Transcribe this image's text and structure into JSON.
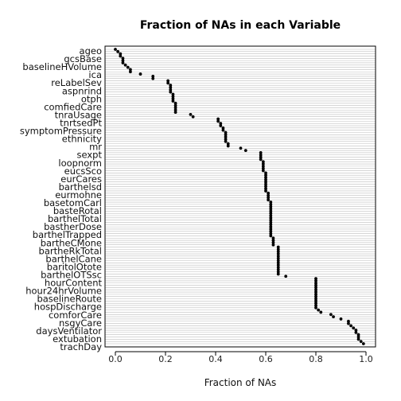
{
  "chart_data": {
    "type": "scatter",
    "title": "Fraction of NAs in each Variable",
    "xlabel": "Fraction of NAs",
    "ylabel": "",
    "xlim": [
      0,
      1
    ],
    "x_ticks": [
      "0.0",
      "0.2",
      "0.4",
      "0.6",
      "0.8",
      "1.0"
    ],
    "x_tick_values": [
      0,
      0.2,
      0.4,
      0.6,
      0.8,
      1.0
    ],
    "grid": "horizontal",
    "y_labels_legible": [
      "ageo",
      "gcsBase",
      "baselineHVolume",
      "ica",
      "reLabelSev",
      "aspnrind",
      "otph",
      "comfiedCare",
      "tnraUsage",
      "tnrtsedPt",
      "symptomPressure",
      "ethnicity",
      "mr",
      "sexpt",
      "loopnorm",
      "eucsSco",
      "eurCares",
      "barthelsd",
      "eurmohne",
      "basetomCarl",
      "basteRotal",
      "barthelTotal",
      "bastherDose",
      "barthelTrapped",
      "bartheCMone",
      "bartheRkTotal",
      "barthelCane",
      "baritolOtote",
      "barthelOTSsc",
      "hourContent",
      "hour24hrVolume",
      "baselineRoute",
      "hospDischarge",
      "comforCare",
      "nsgyCare",
      "daysVentilator",
      "extubation",
      "trachDay"
    ],
    "values": [
      0.0,
      0.01,
      0.02,
      0.02,
      0.03,
      0.03,
      0.03,
      0.04,
      0.05,
      0.06,
      0.06,
      0.1,
      0.15,
      0.15,
      0.21,
      0.21,
      0.22,
      0.22,
      0.22,
      0.22,
      0.23,
      0.23,
      0.23,
      0.23,
      0.24,
      0.24,
      0.24,
      0.24,
      0.24,
      0.3,
      0.31,
      0.41,
      0.41,
      0.42,
      0.42,
      0.43,
      0.43,
      0.44,
      0.44,
      0.44,
      0.44,
      0.44,
      0.45,
      0.45,
      0.5,
      0.52,
      0.58,
      0.58,
      0.58,
      0.58,
      0.59,
      0.59,
      0.59,
      0.59,
      0.59,
      0.6,
      0.6,
      0.6,
      0.6,
      0.6,
      0.6,
      0.6,
      0.6,
      0.6,
      0.61,
      0.61,
      0.61,
      0.61,
      0.62,
      0.62,
      0.62,
      0.62,
      0.62,
      0.62,
      0.62,
      0.62,
      0.62,
      0.62,
      0.62,
      0.62,
      0.62,
      0.62,
      0.62,
      0.62,
      0.63,
      0.63,
      0.63,
      0.63,
      0.65,
      0.65,
      0.65,
      0.65,
      0.65,
      0.65,
      0.65,
      0.65,
      0.65,
      0.65,
      0.65,
      0.65,
      0.65,
      0.68,
      0.8,
      0.8,
      0.8,
      0.8,
      0.8,
      0.8,
      0.8,
      0.8,
      0.8,
      0.8,
      0.8,
      0.8,
      0.8,
      0.8,
      0.81,
      0.82,
      0.86,
      0.87,
      0.9,
      0.93,
      0.93,
      0.94,
      0.95,
      0.96,
      0.96,
      0.97,
      0.97,
      0.97,
      0.98,
      0.99
    ]
  }
}
